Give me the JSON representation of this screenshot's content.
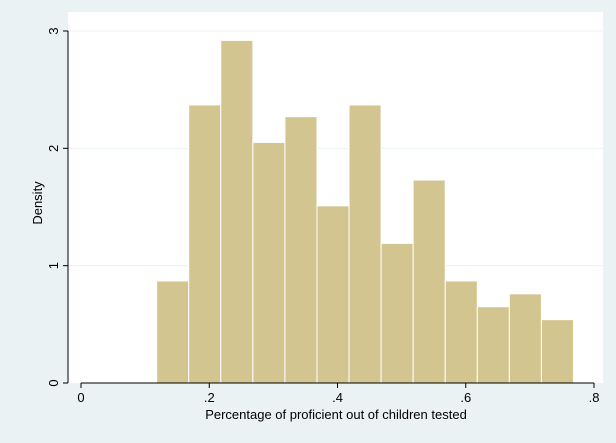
{
  "chart_data": {
    "type": "bar",
    "title": "",
    "xlabel": "Percentage of proficient out of children tested",
    "ylabel": "Density",
    "xlim": [
      0,
      0.8
    ],
    "ylim": [
      0,
      3
    ],
    "xticks": [
      0,
      0.2,
      0.4,
      0.6,
      0.8
    ],
    "xtick_labels": [
      "0",
      ".2",
      ".4",
      ".6",
      ".8"
    ],
    "yticks": [
      0,
      1,
      2,
      3
    ],
    "ytick_labels": [
      "0",
      "1",
      "2",
      "3"
    ],
    "grid": true,
    "bin_edges": [
      0.118,
      0.168,
      0.218,
      0.268,
      0.318,
      0.368,
      0.418,
      0.468,
      0.518,
      0.568,
      0.618,
      0.668,
      0.718,
      0.768
    ],
    "values": [
      0.87,
      2.37,
      2.92,
      2.05,
      2.27,
      1.51,
      2.37,
      1.19,
      1.73,
      0.87,
      0.65,
      0.76,
      0.54
    ],
    "colors": {
      "background": "#eaf2f3",
      "plot_area": "#ffffff",
      "bar_fill": "#d2c58f",
      "bar_edge": "#ffffff",
      "grid": "#eaf2f3"
    }
  }
}
